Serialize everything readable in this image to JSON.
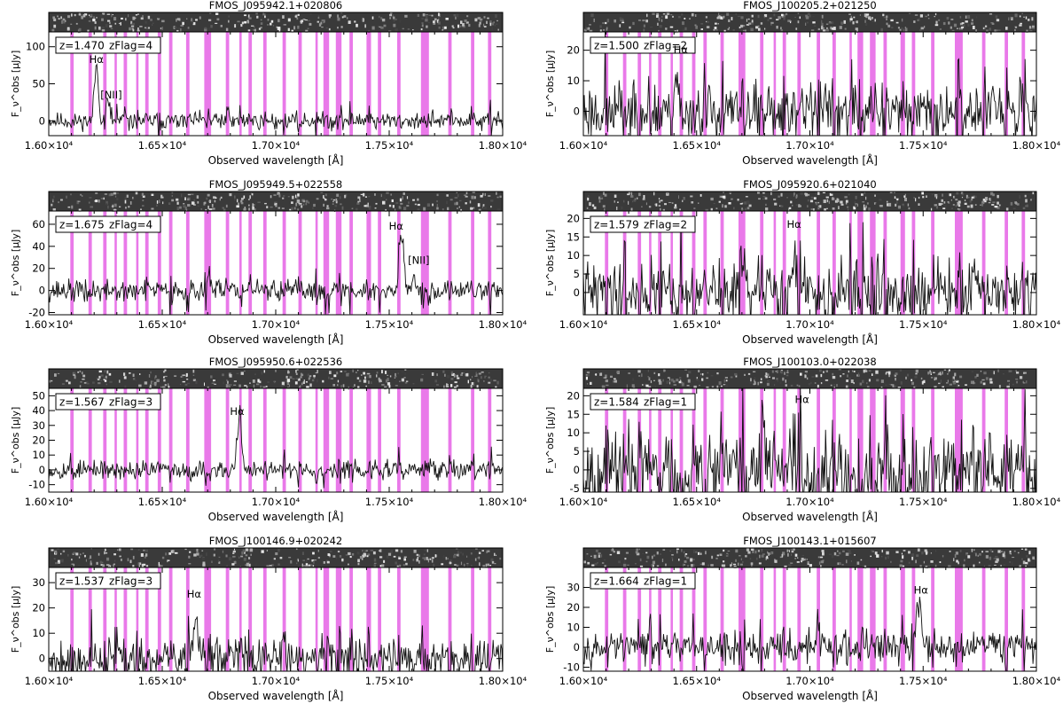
{
  "figure": {
    "xlabel_text": "Observed wavelength [Å]"
  },
  "chart_data": [
    {
      "type": "line",
      "title": "FMOS_J095942.1+020806",
      "redshift_label": "z=1.470",
      "zflag_label": "zFlag=4",
      "xlabel": "Observed wavelength [Å]",
      "ylabel": "F_ν^obs [μJy]",
      "xlim": [
        16000,
        18000
      ],
      "ylim": [
        -20,
        120
      ],
      "yticks": [
        0,
        50,
        100
      ],
      "xticks": [
        16000,
        16500,
        17000,
        17500,
        18000
      ],
      "xtick_labels": [
        "1.60×10⁴",
        "1.65×10⁴",
        "1.70×10⁴",
        "1.75×10⁴",
        "1.80×10⁴"
      ],
      "noise": 7,
      "seed": 11,
      "lines": [
        {
          "label": "Hα",
          "wavelength": 16210,
          "peak": 75,
          "width": 9
        },
        {
          "label": "[NII]",
          "wavelength": 16260,
          "peak": 28,
          "width": 8
        }
      ],
      "annotations": [
        {
          "text": "Hα",
          "x": 16210,
          "y": 78
        },
        {
          "text": "[NII]",
          "x": 16275,
          "y": 30
        }
      ]
    },
    {
      "type": "line",
      "title": "FMOS_J100205.2+021250",
      "redshift_label": "z=1.500",
      "zflag_label": "zFlag=2",
      "xlabel": "Observed wavelength [Å]",
      "ylabel": "F_ν^obs [μJy]",
      "xlim": [
        16000,
        18000
      ],
      "ylim": [
        -8,
        26
      ],
      "yticks": [
        0,
        10,
        20
      ],
      "xticks": [
        16000,
        16500,
        17000,
        17500,
        18000
      ],
      "xtick_labels": [
        "1.60×10⁴",
        "1.65×10⁴",
        "1.70×10⁴",
        "1.75×10⁴",
        "1.80×10⁴"
      ],
      "noise": 6,
      "seed": 23,
      "lines": [
        {
          "label": "Hα",
          "wavelength": 16410,
          "peak": 12,
          "width": 8
        }
      ],
      "annotations": [
        {
          "text": "Hα",
          "x": 16430,
          "y": 19
        }
      ]
    },
    {
      "type": "line",
      "title": "FMOS_J095949.5+022558",
      "redshift_label": "z=1.675",
      "zflag_label": "zFlag=4",
      "xlabel": "Observed wavelength [Å]",
      "ylabel": "F_ν^obs [μJy]",
      "xlim": [
        16000,
        18000
      ],
      "ylim": [
        -22,
        72
      ],
      "yticks": [
        -20,
        0,
        20,
        40,
        60
      ],
      "xticks": [
        16000,
        16500,
        17000,
        17500,
        18000
      ],
      "xtick_labels": [
        "1.60×10⁴",
        "1.65×10⁴",
        "1.70×10⁴",
        "1.75×10⁴",
        "1.80×10⁴"
      ],
      "noise": 6,
      "seed": 37,
      "lines": [
        {
          "label": "Hα",
          "wavelength": 17555,
          "peak": 52,
          "width": 10
        },
        {
          "label": "[NII]",
          "wavelength": 17610,
          "peak": 18,
          "width": 9
        }
      ],
      "annotations": [
        {
          "text": "Hα",
          "x": 17530,
          "y": 55
        },
        {
          "text": "[NII]",
          "x": 17630,
          "y": 24
        }
      ]
    },
    {
      "type": "line",
      "title": "FMOS_J095920.6+021040",
      "redshift_label": "z=1.579",
      "zflag_label": "zFlag=2",
      "xlabel": "Observed wavelength [Å]",
      "ylabel": "F_ν^obs [μJy]",
      "xlim": [
        16000,
        18000
      ],
      "ylim": [
        -6,
        22
      ],
      "yticks": [
        0,
        5,
        10,
        15,
        20
      ],
      "xticks": [
        16000,
        16500,
        17000,
        17500,
        18000
      ],
      "xtick_labels": [
        "1.60×10⁴",
        "1.65×10⁴",
        "1.70×10⁴",
        "1.75×10⁴",
        "1.80×10⁴"
      ],
      "noise": 5,
      "seed": 41,
      "lines": [
        {
          "label": "Hα",
          "wavelength": 16930,
          "peak": 9,
          "width": 8
        }
      ],
      "annotations": [
        {
          "text": "Hα",
          "x": 16930,
          "y": 17.5
        }
      ]
    },
    {
      "type": "line",
      "title": "FMOS_J095950.6+022536",
      "redshift_label": "z=1.567",
      "zflag_label": "zFlag=3",
      "xlabel": "Observed wavelength [Å]",
      "ylabel": "F_ν^obs [μJy]",
      "xlim": [
        16000,
        18000
      ],
      "ylim": [
        -15,
        55
      ],
      "yticks": [
        -10,
        0,
        10,
        20,
        30,
        40,
        50
      ],
      "xticks": [
        16000,
        16500,
        17000,
        17500,
        18000
      ],
      "xtick_labels": [
        "1.60×10⁴",
        "1.65×10⁴",
        "1.70×10⁴",
        "1.75×10⁴",
        "1.80×10⁴"
      ],
      "noise": 4,
      "seed": 53,
      "lines": [
        {
          "label": "Hα",
          "wavelength": 16840,
          "peak": 34,
          "width": 10
        }
      ],
      "annotations": [
        {
          "text": "Hα",
          "x": 16830,
          "y": 37
        }
      ]
    },
    {
      "type": "line",
      "title": "FMOS_J100103.0+022038",
      "redshift_label": "z=1.584",
      "zflag_label": "zFlag=1",
      "xlabel": "Observed wavelength [Å]",
      "ylabel": "F_ν^obs [μJy]",
      "xlim": [
        16000,
        18000
      ],
      "ylim": [
        -6,
        22
      ],
      "yticks": [
        -5,
        0,
        5,
        10,
        15,
        20
      ],
      "xticks": [
        16000,
        16500,
        17000,
        17500,
        18000
      ],
      "xtick_labels": [
        "1.60×10⁴",
        "1.65×10⁴",
        "1.70×10⁴",
        "1.75×10⁴",
        "1.80×10⁴"
      ],
      "noise": 7,
      "seed": 67,
      "lines": [
        {
          "label": "Hα",
          "wavelength": 16955,
          "peak": 8,
          "width": 8
        }
      ],
      "annotations": [
        {
          "text": "Hα",
          "x": 16965,
          "y": 18
        }
      ]
    },
    {
      "type": "line",
      "title": "FMOS_J100146.9+020242",
      "redshift_label": "z=1.537",
      "zflag_label": "zFlag=3",
      "xlabel": "Observed wavelength [Å]",
      "ylabel": "F_ν^obs [μJy]",
      "xlim": [
        16000,
        18000
      ],
      "ylim": [
        -5,
        36
      ],
      "yticks": [
        0,
        10,
        20,
        30
      ],
      "xticks": [
        16000,
        16500,
        17000,
        17500,
        18000
      ],
      "xtick_labels": [
        "1.60×10⁴",
        "1.65×10⁴",
        "1.70×10⁴",
        "1.75×10⁴",
        "1.80×10⁴"
      ],
      "noise": 5,
      "seed": 79,
      "lines": [
        {
          "label": "Hα",
          "wavelength": 16650,
          "peak": 16,
          "width": 9
        }
      ],
      "annotations": [
        {
          "text": "Hα",
          "x": 16640,
          "y": 24
        }
      ]
    },
    {
      "type": "line",
      "title": "FMOS_J100143.1+015607",
      "redshift_label": "z=1.664",
      "zflag_label": "zFlag=1",
      "xlabel": "Observed wavelength [Å]",
      "ylabel": "F_ν^obs [μJy]",
      "xlim": [
        16000,
        18000
      ],
      "ylim": [
        -12,
        40
      ],
      "yticks": [
        -10,
        0,
        10,
        20,
        30
      ],
      "xticks": [
        16000,
        16500,
        17000,
        17500,
        18000
      ],
      "xtick_labels": [
        "1.60×10⁴",
        "1.65×10⁴",
        "1.70×10⁴",
        "1.75×10⁴",
        "1.80×10⁴"
      ],
      "noise": 5,
      "seed": 97,
      "lines": [
        {
          "label": "Hα",
          "wavelength": 17480,
          "peak": 20,
          "width": 9
        }
      ],
      "annotations": [
        {
          "text": "Hα",
          "x": 17490,
          "y": 27
        }
      ]
    }
  ],
  "sky_mask": {
    "color": "#e040e0",
    "bands": [
      [
        16095,
        16110
      ],
      [
        16175,
        16190
      ],
      [
        16240,
        16255
      ],
      [
        16290,
        16300
      ],
      [
        16330,
        16345
      ],
      [
        16385,
        16395
      ],
      [
        16425,
        16440
      ],
      [
        16480,
        16495
      ],
      [
        16530,
        16545
      ],
      [
        16605,
        16620
      ],
      [
        16685,
        16715
      ],
      [
        16780,
        16795
      ],
      [
        16840,
        16850
      ],
      [
        16880,
        16895
      ],
      [
        16945,
        16960
      ],
      [
        17030,
        17045
      ],
      [
        17100,
        17115
      ],
      [
        17175,
        17185
      ],
      [
        17210,
        17235
      ],
      [
        17265,
        17290
      ],
      [
        17325,
        17340
      ],
      [
        17400,
        17420
      ],
      [
        17450,
        17465
      ],
      [
        17535,
        17550
      ],
      [
        17640,
        17675
      ],
      [
        17760,
        17775
      ],
      [
        17860,
        17875
      ],
      [
        17935,
        17950
      ]
    ]
  }
}
